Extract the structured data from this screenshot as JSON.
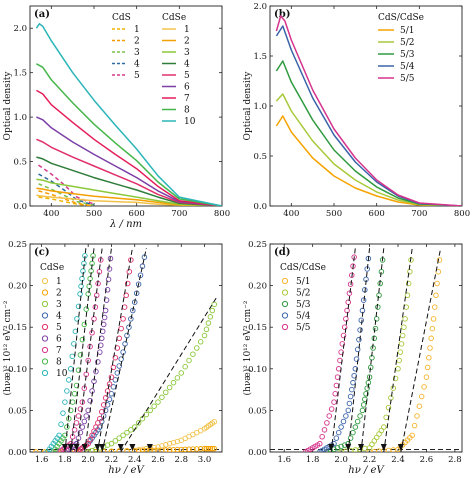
{
  "chart_data": [
    {
      "id": "a",
      "type": "line",
      "panel_label": "(a)",
      "xlabel": "λ / nm",
      "ylabel": "Optical density",
      "xlim": [
        350,
        800
      ],
      "ylim": [
        0,
        2.25
      ],
      "xticks": [
        "400",
        "500",
        "600",
        "700",
        "800"
      ],
      "yticks": [
        "0.0",
        "0.5",
        "1.0",
        "1.5",
        "2.0"
      ],
      "legend_position": "top-right",
      "legend_groups": [
        {
          "title": "CdS",
          "style": "dashed",
          "labels": [
            "1",
            "2",
            "3",
            "4",
            "5"
          ],
          "colors": [
            "#f0b400",
            "#f59b00",
            "#7cc04a",
            "#2e6b9e",
            "#d63a8c"
          ]
        },
        {
          "title": "CdSe",
          "style": "solid",
          "labels": [
            "1",
            "2",
            "3",
            "4",
            "5",
            "6",
            "7",
            "8",
            "10"
          ],
          "colors": [
            "#f2c24a",
            "#f4a000",
            "#8bc83a",
            "#2f7d3a",
            "#e0306a",
            "#7b3fa6",
            "#e51e5a",
            "#45b649",
            "#2bb5b8"
          ]
        }
      ],
      "series": [
        {
          "name": "CdS 1",
          "style": "dashed",
          "color": "#f0b400",
          "x": [
            370,
            400,
            430,
            460,
            500
          ],
          "y": [
            0.1,
            0.08,
            0.05,
            0.02,
            0.0
          ]
        },
        {
          "name": "CdS 2",
          "style": "dashed",
          "color": "#f59b00",
          "x": [
            370,
            400,
            430,
            460,
            500
          ],
          "y": [
            0.17,
            0.13,
            0.08,
            0.03,
            0.0
          ]
        },
        {
          "name": "CdS 3",
          "style": "dashed",
          "color": "#7cc04a",
          "x": [
            370,
            400,
            430,
            460,
            500
          ],
          "y": [
            0.25,
            0.19,
            0.12,
            0.05,
            0.01
          ]
        },
        {
          "name": "CdS 4",
          "style": "dashed",
          "color": "#2e6b9e",
          "x": [
            370,
            400,
            430,
            460,
            500
          ],
          "y": [
            0.36,
            0.28,
            0.18,
            0.07,
            0.01
          ]
        },
        {
          "name": "CdS 5",
          "style": "dashed",
          "color": "#d63a8c",
          "x": [
            370,
            400,
            430,
            460,
            500
          ],
          "y": [
            0.46,
            0.36,
            0.24,
            0.1,
            0.02
          ]
        },
        {
          "name": "CdSe 1",
          "color": "#f2c24a",
          "x": [
            365,
            380,
            400,
            450,
            500,
            550,
            600,
            650,
            700,
            800
          ],
          "y": [
            0.12,
            0.11,
            0.1,
            0.08,
            0.06,
            0.05,
            0.04,
            0.02,
            0.01,
            0.0
          ]
        },
        {
          "name": "CdSe 2",
          "color": "#f4a000",
          "x": [
            365,
            380,
            400,
            450,
            500,
            550,
            600,
            650,
            700,
            800
          ],
          "y": [
            0.2,
            0.19,
            0.17,
            0.14,
            0.11,
            0.09,
            0.07,
            0.04,
            0.015,
            0.0
          ]
        },
        {
          "name": "CdSe 3",
          "color": "#8bc83a",
          "x": [
            365,
            380,
            400,
            450,
            500,
            550,
            600,
            650,
            700,
            800
          ],
          "y": [
            0.3,
            0.29,
            0.26,
            0.22,
            0.18,
            0.14,
            0.1,
            0.06,
            0.02,
            0.0
          ]
        },
        {
          "name": "CdSe 4",
          "color": "#2f7d3a",
          "x": [
            365,
            380,
            400,
            450,
            500,
            550,
            600,
            650,
            700,
            800
          ],
          "y": [
            0.55,
            0.53,
            0.48,
            0.4,
            0.32,
            0.25,
            0.18,
            0.1,
            0.03,
            0.0
          ]
        },
        {
          "name": "CdSe 5",
          "color": "#e0306a",
          "x": [
            365,
            380,
            400,
            450,
            500,
            550,
            600,
            650,
            700,
            800
          ],
          "y": [
            0.75,
            0.72,
            0.66,
            0.55,
            0.45,
            0.35,
            0.25,
            0.13,
            0.04,
            0.0
          ]
        },
        {
          "name": "CdSe 6",
          "color": "#7b3fa6",
          "x": [
            365,
            380,
            400,
            450,
            500,
            550,
            600,
            650,
            700,
            800
          ],
          "y": [
            1.0,
            0.97,
            0.88,
            0.72,
            0.58,
            0.45,
            0.32,
            0.17,
            0.05,
            0.0
          ]
        },
        {
          "name": "CdSe 7",
          "color": "#e51e5a",
          "x": [
            365,
            380,
            400,
            450,
            500,
            550,
            600,
            650,
            700,
            800
          ],
          "y": [
            1.3,
            1.26,
            1.14,
            0.94,
            0.75,
            0.58,
            0.42,
            0.22,
            0.06,
            0.0
          ]
        },
        {
          "name": "CdSe 8",
          "color": "#45b649",
          "x": [
            365,
            380,
            400,
            450,
            500,
            550,
            600,
            650,
            700,
            800
          ],
          "y": [
            1.6,
            1.56,
            1.42,
            1.16,
            0.92,
            0.71,
            0.51,
            0.27,
            0.08,
            0.0
          ]
        },
        {
          "name": "CdSe 10",
          "color": "#2bb5b8",
          "x": [
            365,
            372,
            380,
            400,
            450,
            500,
            550,
            600,
            650,
            700,
            800
          ],
          "y": [
            2.0,
            2.05,
            2.02,
            1.86,
            1.5,
            1.19,
            0.91,
            0.64,
            0.34,
            0.1,
            0.0
          ]
        }
      ]
    },
    {
      "id": "b",
      "type": "line",
      "panel_label": "(b)",
      "xlabel": "",
      "ylabel": "Optical density",
      "xlim": [
        350,
        800
      ],
      "ylim": [
        0,
        2.0
      ],
      "xticks": [
        "400",
        "500",
        "600",
        "700",
        "800"
      ],
      "yticks": [
        "0.0",
        "0.5",
        "1.0",
        "1.5",
        "2.0"
      ],
      "legend_position": "top-right",
      "legend_title": "CdS/CdSe",
      "series": [
        {
          "name": "5/1",
          "color": "#f5a300",
          "x": [
            365,
            380,
            400,
            450,
            500,
            550,
            600,
            650,
            700,
            800
          ],
          "y": [
            0.8,
            0.9,
            0.74,
            0.48,
            0.3,
            0.18,
            0.1,
            0.04,
            0.01,
            0.0
          ]
        },
        {
          "name": "5/2",
          "color": "#a7c93a",
          "x": [
            365,
            380,
            400,
            450,
            500,
            550,
            600,
            650,
            700,
            800
          ],
          "y": [
            1.05,
            1.12,
            0.95,
            0.65,
            0.42,
            0.26,
            0.14,
            0.06,
            0.015,
            0.0
          ]
        },
        {
          "name": "5/3",
          "color": "#2f9a3f",
          "x": [
            365,
            380,
            400,
            450,
            500,
            550,
            600,
            650,
            700,
            800
          ],
          "y": [
            1.35,
            1.45,
            1.24,
            0.86,
            0.56,
            0.35,
            0.19,
            0.08,
            0.02,
            0.0
          ]
        },
        {
          "name": "5/4",
          "color": "#3a64a8",
          "x": [
            365,
            380,
            400,
            450,
            500,
            550,
            600,
            650,
            700,
            800
          ],
          "y": [
            1.7,
            1.8,
            1.56,
            1.08,
            0.71,
            0.44,
            0.24,
            0.1,
            0.025,
            0.0
          ]
        },
        {
          "name": "5/5",
          "color": "#d6338c",
          "x": [
            365,
            375,
            385,
            400,
            450,
            500,
            550,
            600,
            650,
            700,
            800
          ],
          "y": [
            1.75,
            1.9,
            1.85,
            1.66,
            1.16,
            0.77,
            0.48,
            0.26,
            0.11,
            0.03,
            0.0
          ]
        }
      ]
    },
    {
      "id": "c",
      "type": "scatter",
      "panel_label": "(c)",
      "xlabel": "hν / eV",
      "ylabel": "(hνæ)² 10¹² eV² cm⁻²",
      "xlim": [
        1.5,
        3.15
      ],
      "ylim": [
        0,
        0.25
      ],
      "xticks": [
        "1.6",
        "1.8",
        "2.0",
        "2.2",
        "2.4",
        "2.6",
        "2.8",
        "3.0"
      ],
      "yticks": [
        "0.00",
        "0.05",
        "0.10",
        "0.15",
        "0.20",
        "0.25"
      ],
      "legend_position": "top-left",
      "legend_title": "CdSe",
      "series": [
        {
          "name": "1",
          "color": "#f2c24a",
          "eg": 2.53,
          "x": [
            1.55,
            2.0,
            2.4,
            2.6,
            2.8,
            3.0,
            3.1
          ],
          "y": [
            0.0,
            0.0,
            0.002,
            0.006,
            0.014,
            0.028,
            0.038
          ]
        },
        {
          "name": "2",
          "color": "#f5a300",
          "eg": 2.38,
          "x": [
            1.55,
            2.0,
            2.4,
            2.6,
            2.8,
            3.0,
            3.1
          ],
          "y": [
            0.0,
            0.0,
            0.001,
            0.002,
            0.003,
            0.004,
            0.004
          ]
        },
        {
          "name": "3",
          "color": "#8bc83a",
          "eg": 2.28,
          "x": [
            2.0,
            2.2,
            2.4,
            2.6,
            2.8,
            3.0,
            3.1
          ],
          "y": [
            0.0,
            0.01,
            0.03,
            0.06,
            0.095,
            0.14,
            0.185
          ]
        },
        {
          "name": "4",
          "color": "#3a64a8",
          "eg": 2.12,
          "x": [
            1.9,
            2.0,
            2.1,
            2.2,
            2.3,
            2.4,
            2.5
          ],
          "y": [
            0.0,
            0.01,
            0.03,
            0.07,
            0.12,
            0.18,
            0.245
          ]
        },
        {
          "name": "5",
          "color": "#e0306a",
          "eg": 2.08,
          "x": [
            1.9,
            2.0,
            2.1,
            2.2,
            2.3,
            2.38
          ],
          "y": [
            0.0,
            0.01,
            0.04,
            0.09,
            0.16,
            0.245
          ]
        },
        {
          "name": "6",
          "color": "#7b3fa6",
          "eg": 1.97,
          "x": [
            1.8,
            1.9,
            2.0,
            2.1,
            2.15,
            2.2
          ],
          "y": [
            0.0,
            0.01,
            0.05,
            0.12,
            0.17,
            0.245
          ]
        },
        {
          "name": "7",
          "color": "#d6338c",
          "eg": 1.9,
          "x": [
            1.75,
            1.85,
            1.95,
            2.05,
            2.12
          ],
          "y": [
            0.0,
            0.01,
            0.06,
            0.16,
            0.245
          ]
        },
        {
          "name": "8",
          "color": "#45b649",
          "eg": 1.85,
          "x": [
            1.7,
            1.8,
            1.9,
            2.0,
            2.05
          ],
          "y": [
            0.0,
            0.02,
            0.08,
            0.19,
            0.245
          ]
        },
        {
          "name": "10",
          "color": "#2bb5b8",
          "eg": 1.8,
          "x": [
            1.65,
            1.75,
            1.85,
            1.93,
            1.98
          ],
          "y": [
            0.0,
            0.02,
            0.1,
            0.19,
            0.245
          ]
        }
      ]
    },
    {
      "id": "d",
      "type": "scatter",
      "panel_label": "(d)",
      "xlabel": "hν / eV",
      "ylabel": "(hνæ)² 10¹² eV² cm⁻²",
      "xlim": [
        1.5,
        2.85
      ],
      "ylim": [
        0,
        0.25
      ],
      "xticks": [
        "1.6",
        "1.8",
        "2.0",
        "2.2",
        "2.4",
        "2.6",
        "2.8"
      ],
      "yticks": [
        "0.00",
        "0.05",
        "0.10",
        "0.15",
        "0.20",
        "0.25"
      ],
      "legend_position": "top-left",
      "legend_title": "CdS/CdSe",
      "series": [
        {
          "name": "5/1",
          "color": "#f5b52e",
          "eg": 2.42,
          "x": [
            2.2,
            2.4,
            2.5,
            2.6,
            2.65,
            2.7
          ],
          "y": [
            0.0,
            0.003,
            0.02,
            0.09,
            0.16,
            0.245
          ]
        },
        {
          "name": "5/2",
          "color": "#a7c93a",
          "eg": 2.3,
          "x": [
            2.0,
            2.2,
            2.3,
            2.4,
            2.45,
            2.5
          ],
          "y": [
            0.0,
            0.005,
            0.03,
            0.1,
            0.16,
            0.245
          ]
        },
        {
          "name": "5/3",
          "color": "#2f9a3f",
          "eg": 2.14,
          "x": [
            1.9,
            2.05,
            2.15,
            2.2,
            2.25,
            2.3
          ],
          "y": [
            0.0,
            0.01,
            0.05,
            0.09,
            0.16,
            0.245
          ]
        },
        {
          "name": "5/4",
          "color": "#3a64a8",
          "eg": 2.05,
          "x": [
            1.85,
            1.95,
            2.05,
            2.1,
            2.15,
            2.2
          ],
          "y": [
            0.0,
            0.01,
            0.05,
            0.1,
            0.17,
            0.245
          ]
        },
        {
          "name": "5/5",
          "color": "#d6338c",
          "eg": 1.93,
          "x": [
            1.75,
            1.85,
            1.95,
            2.0,
            2.05,
            2.1
          ],
          "y": [
            0.0,
            0.01,
            0.06,
            0.12,
            0.18,
            0.245
          ]
        }
      ]
    }
  ]
}
